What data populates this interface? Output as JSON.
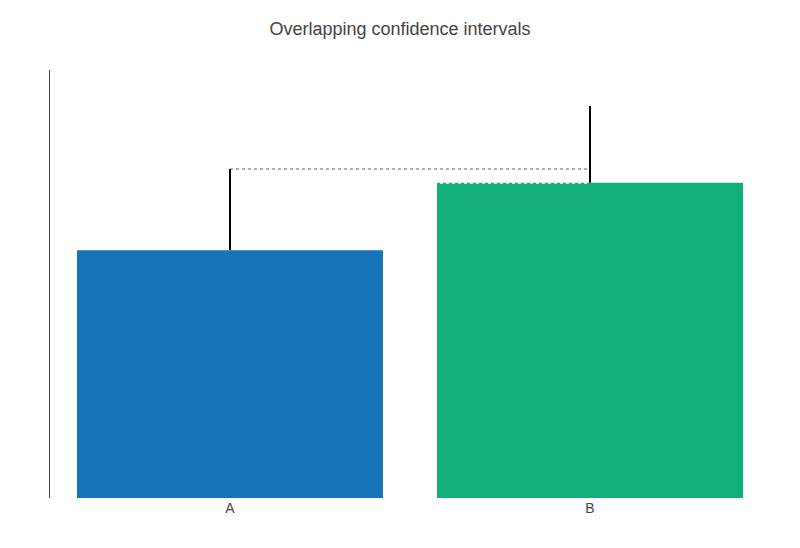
{
  "chart_data": {
    "type": "bar",
    "title": "Overlapping confidence intervals",
    "categories": [
      "A",
      "B"
    ],
    "values": [
      5.5,
      7.0
    ],
    "colors": [
      "#1874b8",
      "#13b07a"
    ],
    "confidence_intervals": {
      "upper": [
        7.3,
        8.7
      ],
      "color": "#000000"
    },
    "reference_lines": [
      {
        "value": 7.3,
        "color": "#b0b0b0",
        "line_style": "dotted"
      },
      {
        "value": 7.0,
        "color": "#ffffff",
        "line_style": "dotted"
      }
    ],
    "ylim": [
      0,
      9.5
    ],
    "grid": false,
    "tick_labels": "x"
  }
}
